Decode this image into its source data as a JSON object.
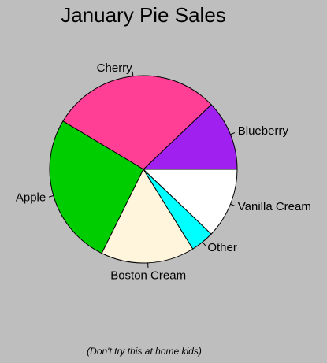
{
  "chart_data": {
    "type": "pie",
    "title": "January Pie Sales",
    "caption": "(Don't try this at home kids)",
    "start_angle_deg": 0,
    "direction": "counterclockwise",
    "slices": [
      {
        "label": "Blueberry",
        "value": 12,
        "color": "#a020f0"
      },
      {
        "label": "Cherry",
        "value": 29,
        "color": "#ff3e96"
      },
      {
        "label": "Apple",
        "value": 26,
        "color": "#00cd00"
      },
      {
        "label": "Boston Cream",
        "value": 16,
        "color": "#fff5dc"
      },
      {
        "label": "Other",
        "value": 4,
        "color": "#00ffff"
      },
      {
        "label": "Vanilla Cream",
        "value": 12,
        "color": "#ffffff"
      }
    ]
  }
}
